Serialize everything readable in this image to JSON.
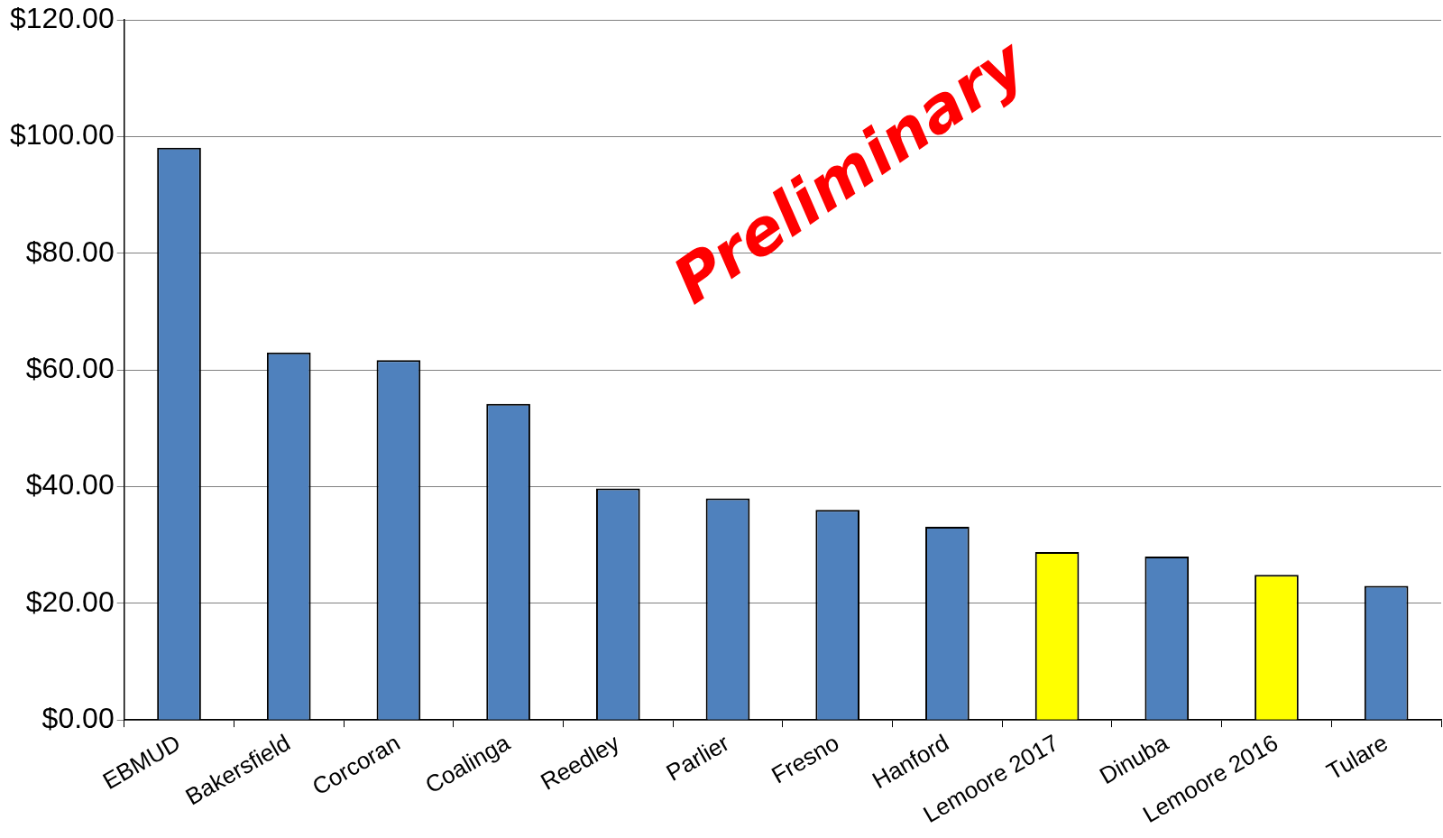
{
  "chart_data": {
    "type": "bar",
    "categories": [
      "EBMUD",
      "Bakersfield",
      "Corcoran",
      "Coalinga",
      "Reedley",
      "Parlier",
      "Fresno",
      "Hanford",
      "Lemoore 2017",
      "Dinuba",
      "Lemoore 2016",
      "Tulare"
    ],
    "values": [
      98.1,
      63.0,
      61.7,
      54.2,
      39.7,
      38.0,
      36.0,
      33.1,
      28.8,
      28.0,
      24.9,
      23.0
    ],
    "colors": [
      "#4f81bd",
      "#4f81bd",
      "#4f81bd",
      "#4f81bd",
      "#4f81bd",
      "#4f81bd",
      "#4f81bd",
      "#4f81bd",
      "#ffff00",
      "#4f81bd",
      "#ffff00",
      "#4f81bd"
    ],
    "ylim": [
      0,
      120
    ],
    "yticks": [
      {
        "value": 0,
        "label": "$0.00"
      },
      {
        "value": 20,
        "label": "$20.00"
      },
      {
        "value": 40,
        "label": "$40.00"
      },
      {
        "value": 60,
        "label": "$60.00"
      },
      {
        "value": 80,
        "label": "$80.00"
      },
      {
        "value": 100,
        "label": "$100.00"
      },
      {
        "value": 120,
        "label": "$120.00"
      }
    ],
    "grid": "y",
    "legend": false,
    "annotations": [
      "Preliminary"
    ]
  }
}
